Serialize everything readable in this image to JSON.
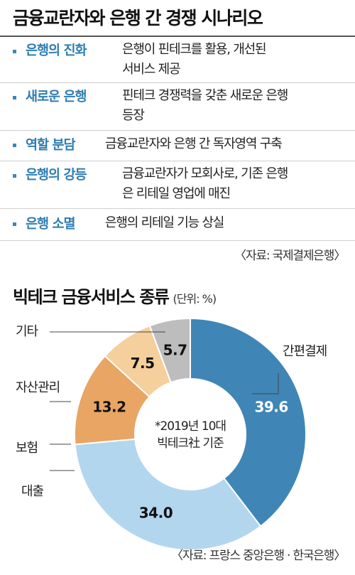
{
  "header": {
    "title": "금융교란자와 은행 간 경쟁 시나리오"
  },
  "scenarios": [
    {
      "term": "은행의 진화",
      "desc_lines": [
        "은행이 핀테크를 활용, 개선된",
        "서비스 제공"
      ]
    },
    {
      "term": "새로운 은행",
      "desc_lines": [
        "핀테크 경쟁력을 갖춘 새로운 은행",
        "등장"
      ]
    },
    {
      "term": "역할 분담",
      "desc_lines": [
        "금융교란자와 은행 간 독자영역 구축"
      ]
    },
    {
      "term": "은행의 강등",
      "desc_lines": [
        "금융교란자가 모회사로, 기존 은행",
        "은 리테일 영업에 매진"
      ]
    },
    {
      "term": "은행 소멸",
      "desc_lines": [
        "은행의 리테일 기능 상실"
      ]
    }
  ],
  "source_top": "〈자료: 국제결제은행〉",
  "chart_section": {
    "title": "빅테크 금융서비스 종류",
    "unit": "(단위: %)"
  },
  "chart_data": {
    "type": "pie",
    "style": "donut",
    "title": "빅테크 금융서비스 종류",
    "unit": "%",
    "slices": [
      {
        "label": "간편결제",
        "value": 39.6,
        "color": "#3f86b6",
        "value_color": "#ffffff"
      },
      {
        "label": "대출",
        "value": 34.0,
        "color": "#b3d6ef",
        "value_color": "#111111"
      },
      {
        "label": "보험",
        "value": 13.2,
        "color": "#e8a564",
        "value_color": "#111111"
      },
      {
        "label": "자산관리",
        "value": 7.5,
        "color": "#f5cf9c",
        "value_color": "#111111"
      },
      {
        "label": "기타",
        "value": 5.7,
        "color": "#bdbdbd",
        "value_color": "#111111"
      }
    ],
    "center_note": [
      "*2019년 10대",
      "빅테크社 기준"
    ]
  },
  "source_bottom": "〈자료: 프랑스 중앙은행 · 한국은행〉"
}
